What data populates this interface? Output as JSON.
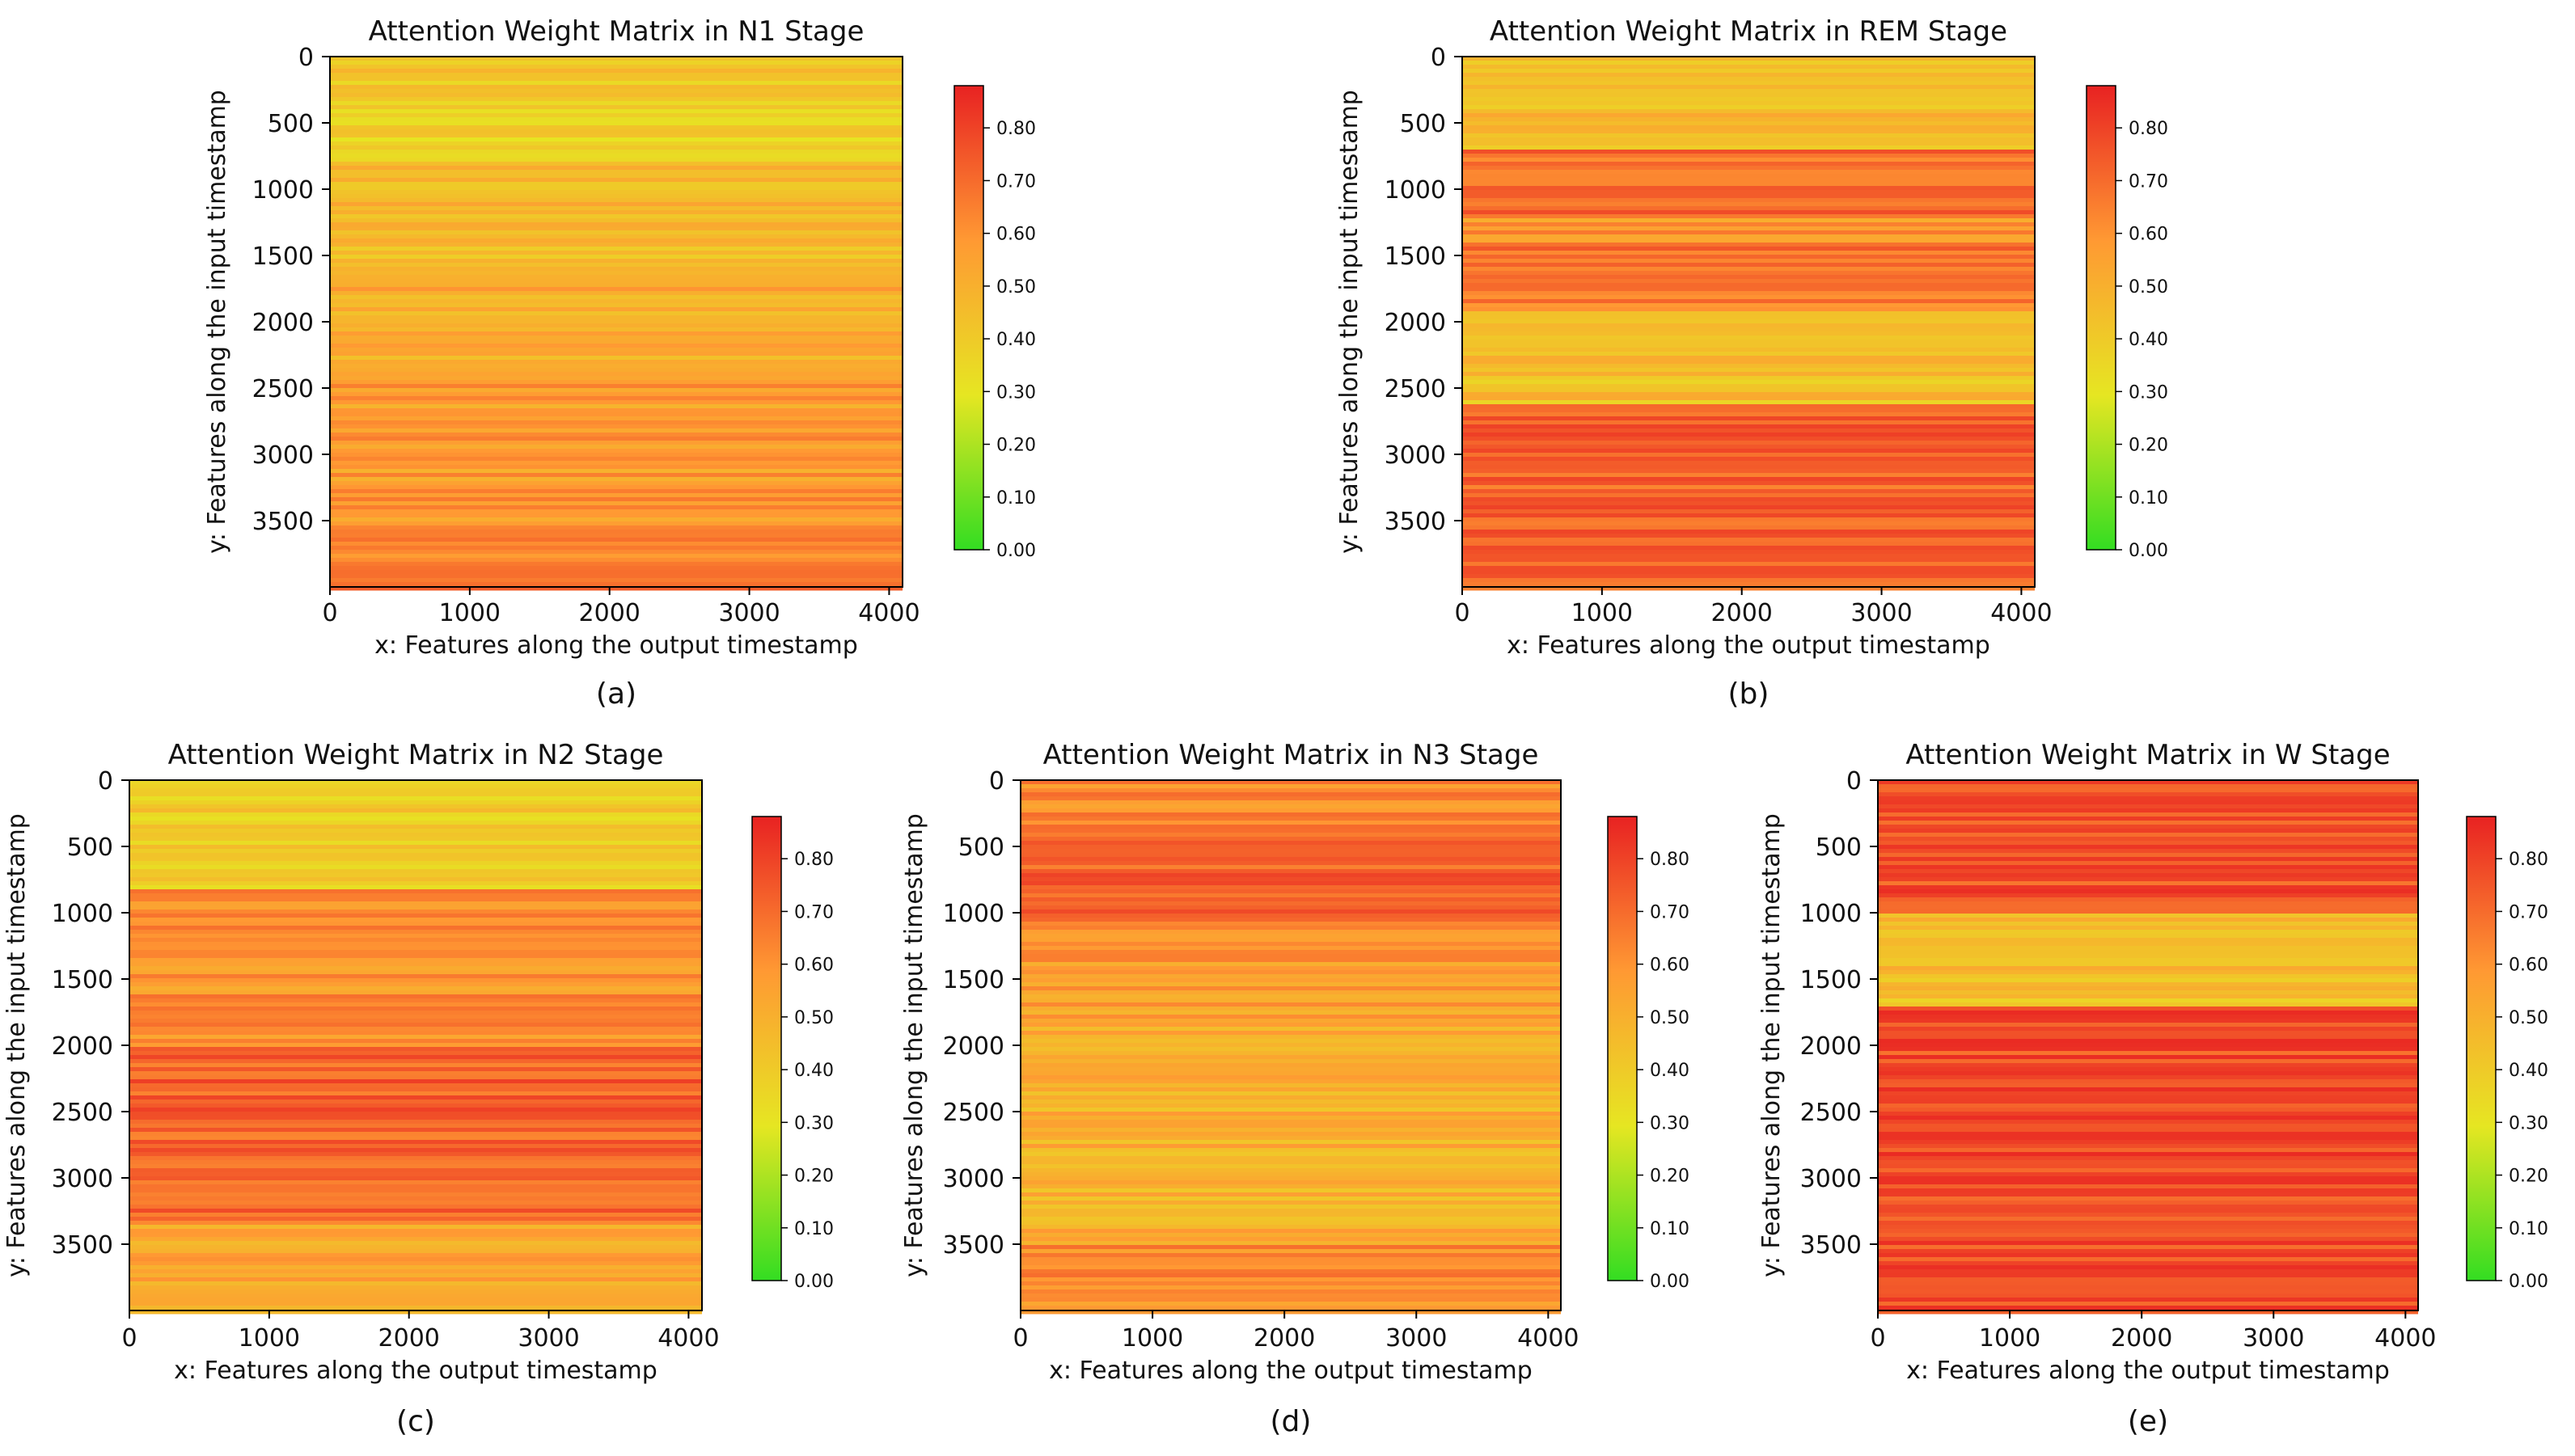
{
  "figure": {
    "colorbar": {
      "min": 0.0,
      "max": 0.88,
      "ticks": [
        "0.00",
        "0.10",
        "0.20",
        "0.30",
        "0.40",
        "0.50",
        "0.60",
        "0.70",
        "0.80"
      ],
      "colors": [
        "#33dd22",
        "#e6e622",
        "#ff9933",
        "#e82222"
      ]
    }
  },
  "chart_data": [
    {
      "type": "heatmap",
      "panel_label": "(a)",
      "title": "Attention Weight Matrix in N1 Stage",
      "xlabel": "x: Features along the output timestamp",
      "ylabel": "y: Features along the input timestamp",
      "xlim": [
        0,
        4096
      ],
      "ylim": [
        4000,
        0
      ],
      "xticks": [
        "0",
        "1000",
        "2000",
        "3000",
        "4000"
      ],
      "yticks": [
        "0",
        "500",
        "1000",
        "1500",
        "2000",
        "2500",
        "3000",
        "3500"
      ],
      "row_bands": [
        {
          "y_start": 0,
          "y_end": 300,
          "value": 0.4
        },
        {
          "y_start": 300,
          "y_end": 800,
          "value": 0.37
        },
        {
          "y_start": 800,
          "y_end": 1600,
          "value": 0.46
        },
        {
          "y_start": 1600,
          "y_end": 2400,
          "value": 0.52
        },
        {
          "y_start": 2400,
          "y_end": 3200,
          "value": 0.57
        },
        {
          "y_start": 3200,
          "y_end": 3700,
          "value": 0.6
        },
        {
          "y_start": 3700,
          "y_end": 4000,
          "value": 0.66
        }
      ]
    },
    {
      "type": "heatmap",
      "panel_label": "(b)",
      "title": "Attention Weight Matrix in REM Stage",
      "xlabel": "x: Features along the output timestamp",
      "ylabel": "y: Features along the input timestamp",
      "xlim": [
        0,
        4096
      ],
      "ylim": [
        4000,
        0
      ],
      "xticks": [
        "0",
        "1000",
        "2000",
        "3000",
        "4000"
      ],
      "yticks": [
        "0",
        "500",
        "1000",
        "1500",
        "2000",
        "2500",
        "3000",
        "3500"
      ],
      "row_bands": [
        {
          "y_start": 0,
          "y_end": 700,
          "value": 0.45
        },
        {
          "y_start": 700,
          "y_end": 1200,
          "value": 0.7
        },
        {
          "y_start": 1200,
          "y_end": 1400,
          "value": 0.58
        },
        {
          "y_start": 1400,
          "y_end": 1900,
          "value": 0.67
        },
        {
          "y_start": 1900,
          "y_end": 2600,
          "value": 0.44
        },
        {
          "y_start": 2600,
          "y_end": 4000,
          "value": 0.72
        }
      ]
    },
    {
      "type": "heatmap",
      "panel_label": "(c)",
      "title": "Attention Weight Matrix in N2 Stage",
      "xlabel": "x: Features along the output timestamp",
      "ylabel": "y: Features along the input timestamp",
      "xlim": [
        0,
        4096
      ],
      "ylim": [
        4000,
        0
      ],
      "xticks": [
        "0",
        "1000",
        "2000",
        "3000",
        "4000"
      ],
      "yticks": [
        "0",
        "500",
        "1000",
        "1500",
        "2000",
        "2500",
        "3000",
        "3500"
      ],
      "row_bands": [
        {
          "y_start": 0,
          "y_end": 800,
          "value": 0.4
        },
        {
          "y_start": 800,
          "y_end": 2000,
          "value": 0.6
        },
        {
          "y_start": 2000,
          "y_end": 3300,
          "value": 0.72
        },
        {
          "y_start": 3300,
          "y_end": 4000,
          "value": 0.55
        }
      ]
    },
    {
      "type": "heatmap",
      "panel_label": "(d)",
      "title": "Attention Weight Matrix in N3 Stage",
      "xlabel": "x: Features along the output timestamp",
      "ylabel": "y: Features along the input timestamp",
      "xlim": [
        0,
        4096
      ],
      "ylim": [
        4000,
        0
      ],
      "xticks": [
        "0",
        "1000",
        "2000",
        "3000",
        "4000"
      ],
      "yticks": [
        "0",
        "500",
        "1000",
        "1500",
        "2000",
        "2500",
        "3000",
        "3500"
      ],
      "row_bands": [
        {
          "y_start": 0,
          "y_end": 350,
          "value": 0.62
        },
        {
          "y_start": 350,
          "y_end": 1050,
          "value": 0.73
        },
        {
          "y_start": 1050,
          "y_end": 1800,
          "value": 0.57
        },
        {
          "y_start": 1800,
          "y_end": 3500,
          "value": 0.5
        },
        {
          "y_start": 3500,
          "y_end": 4000,
          "value": 0.62
        }
      ]
    },
    {
      "type": "heatmap",
      "panel_label": "(e)",
      "title": "Attention Weight Matrix in W Stage",
      "xlabel": "x: Features along the output timestamp",
      "ylabel": "y: Features along the input timestamp",
      "xlim": [
        0,
        4096
      ],
      "ylim": [
        4000,
        0
      ],
      "xticks": [
        "0",
        "1000",
        "2000",
        "3000",
        "4000"
      ],
      "yticks": [
        "0",
        "500",
        "1000",
        "1500",
        "2000",
        "2500",
        "3000",
        "3500"
      ],
      "row_bands": [
        {
          "y_start": 0,
          "y_end": 1000,
          "value": 0.76
        },
        {
          "y_start": 1000,
          "y_end": 1700,
          "value": 0.45
        },
        {
          "y_start": 1700,
          "y_end": 4000,
          "value": 0.77
        }
      ]
    }
  ]
}
